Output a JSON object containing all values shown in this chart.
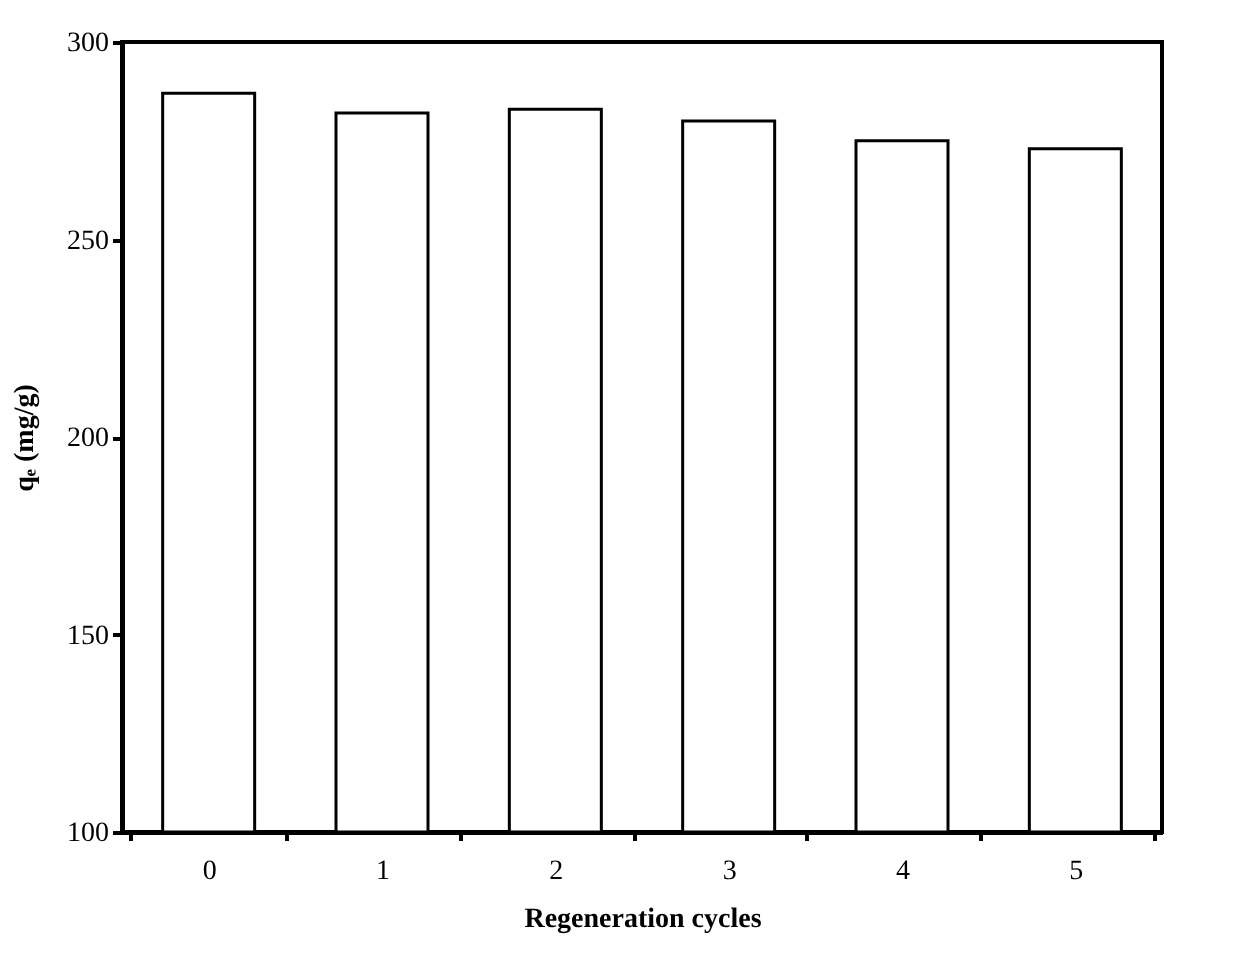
{
  "chart_data": {
    "type": "bar",
    "xlabel": "Regeneration cycles",
    "ylabel": "qₑ (mg/g)",
    "categories": [
      "0",
      "1",
      "2",
      "3",
      "4",
      "5"
    ],
    "values": [
      287,
      282,
      283,
      280,
      275,
      273
    ],
    "color": "#ffffff",
    "ylim": [
      100,
      300
    ],
    "yticks": [
      100,
      150,
      200,
      250,
      300
    ],
    "grid": false
  }
}
